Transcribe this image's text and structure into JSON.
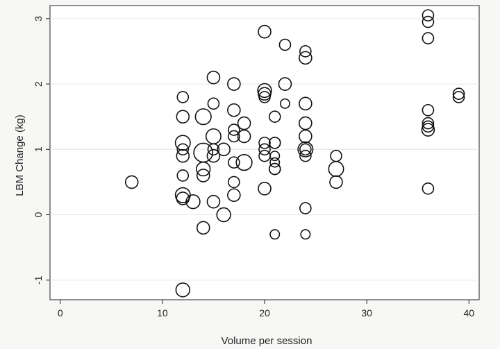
{
  "chart_data": {
    "type": "scatter",
    "xlabel": "Volume per session",
    "ylabel": "LBM Change (kg)",
    "xlim": [
      -1,
      41
    ],
    "ylim": [
      -1.3,
      3.2
    ],
    "x_ticks": [
      0,
      10,
      20,
      30,
      40
    ],
    "y_ticks": [
      -1,
      0,
      1,
      2,
      3
    ],
    "grid": "horizontal",
    "marker": "hollow circle, size weighted",
    "points": [
      {
        "x": 7,
        "y": 0.5,
        "s": 3
      },
      {
        "x": 12,
        "y": 1.8,
        "s": 2
      },
      {
        "x": 12,
        "y": 1.5,
        "s": 3
      },
      {
        "x": 12,
        "y": 1.1,
        "s": 5
      },
      {
        "x": 12,
        "y": 1.0,
        "s": 2
      },
      {
        "x": 12,
        "y": 0.9,
        "s": 3
      },
      {
        "x": 12,
        "y": 0.6,
        "s": 2
      },
      {
        "x": 12,
        "y": 0.3,
        "s": 5
      },
      {
        "x": 12,
        "y": 0.25,
        "s": 3
      },
      {
        "x": 12,
        "y": -1.15,
        "s": 4
      },
      {
        "x": 13,
        "y": 0.2,
        "s": 4
      },
      {
        "x": 14,
        "y": 1.5,
        "s": 6
      },
      {
        "x": 14,
        "y": 0.95,
        "s": 10
      },
      {
        "x": 14,
        "y": 0.7,
        "s": 4
      },
      {
        "x": 14,
        "y": 0.6,
        "s": 3
      },
      {
        "x": 14,
        "y": -0.2,
        "s": 3
      },
      {
        "x": 15,
        "y": 2.1,
        "s": 3
      },
      {
        "x": 15,
        "y": 1.7,
        "s": 2
      },
      {
        "x": 15,
        "y": 1.2,
        "s": 5
      },
      {
        "x": 15,
        "y": 1.0,
        "s": 2
      },
      {
        "x": 15,
        "y": 0.9,
        "s": 3
      },
      {
        "x": 15,
        "y": 0.2,
        "s": 3
      },
      {
        "x": 16,
        "y": 1.0,
        "s": 3
      },
      {
        "x": 16,
        "y": 0.0,
        "s": 4
      },
      {
        "x": 17,
        "y": 2.0,
        "s": 3
      },
      {
        "x": 17,
        "y": 1.6,
        "s": 3
      },
      {
        "x": 17,
        "y": 1.3,
        "s": 2
      },
      {
        "x": 17,
        "y": 1.2,
        "s": 2
      },
      {
        "x": 17,
        "y": 0.8,
        "s": 2
      },
      {
        "x": 17,
        "y": 0.5,
        "s": 2
      },
      {
        "x": 17,
        "y": 0.3,
        "s": 3
      },
      {
        "x": 18,
        "y": 1.4,
        "s": 3
      },
      {
        "x": 18,
        "y": 1.2,
        "s": 3
      },
      {
        "x": 18,
        "y": 0.8,
        "s": 6
      },
      {
        "x": 20,
        "y": 2.8,
        "s": 3
      },
      {
        "x": 20,
        "y": 1.9,
        "s": 4
      },
      {
        "x": 20,
        "y": 1.85,
        "s": 3
      },
      {
        "x": 20,
        "y": 1.8,
        "s": 2
      },
      {
        "x": 20,
        "y": 1.1,
        "s": 2
      },
      {
        "x": 20,
        "y": 1.0,
        "s": 2
      },
      {
        "x": 20,
        "y": 0.9,
        "s": 2
      },
      {
        "x": 20,
        "y": 0.4,
        "s": 3
      },
      {
        "x": 21,
        "y": 1.5,
        "s": 2
      },
      {
        "x": 21,
        "y": 1.1,
        "s": 2
      },
      {
        "x": 21,
        "y": 1.1,
        "s": 2
      },
      {
        "x": 21,
        "y": 0.9,
        "s": 1
      },
      {
        "x": 21,
        "y": 0.8,
        "s": 1
      },
      {
        "x": 21,
        "y": 0.7,
        "s": 2
      },
      {
        "x": 21,
        "y": 0.7,
        "s": 2
      },
      {
        "x": 21,
        "y": -0.3,
        "s": 1
      },
      {
        "x": 22,
        "y": 2.6,
        "s": 2
      },
      {
        "x": 22,
        "y": 2.0,
        "s": 3
      },
      {
        "x": 22,
        "y": 1.7,
        "s": 1
      },
      {
        "x": 24,
        "y": 2.5,
        "s": 2
      },
      {
        "x": 24,
        "y": 2.4,
        "s": 3
      },
      {
        "x": 24,
        "y": 1.7,
        "s": 3
      },
      {
        "x": 24,
        "y": 1.4,
        "s": 3
      },
      {
        "x": 24,
        "y": 1.2,
        "s": 3
      },
      {
        "x": 24,
        "y": 1.0,
        "s": 5
      },
      {
        "x": 24,
        "y": 1.0,
        "s": 2
      },
      {
        "x": 24,
        "y": 0.9,
        "s": 2
      },
      {
        "x": 24,
        "y": 0.1,
        "s": 2
      },
      {
        "x": 24,
        "y": -0.3,
        "s": 1
      },
      {
        "x": 27,
        "y": 0.9,
        "s": 2
      },
      {
        "x": 27,
        "y": 0.7,
        "s": 5
      },
      {
        "x": 27,
        "y": 0.5,
        "s": 3
      },
      {
        "x": 36,
        "y": 3.05,
        "s": 2
      },
      {
        "x": 36,
        "y": 2.95,
        "s": 2
      },
      {
        "x": 36,
        "y": 2.7,
        "s": 2
      },
      {
        "x": 36,
        "y": 1.6,
        "s": 2
      },
      {
        "x": 36,
        "y": 1.4,
        "s": 2
      },
      {
        "x": 36,
        "y": 1.35,
        "s": 2
      },
      {
        "x": 36,
        "y": 1.3,
        "s": 3
      },
      {
        "x": 36,
        "y": 0.4,
        "s": 2
      },
      {
        "x": 39,
        "y": 1.85,
        "s": 2
      },
      {
        "x": 39,
        "y": 1.8,
        "s": 2
      }
    ]
  }
}
